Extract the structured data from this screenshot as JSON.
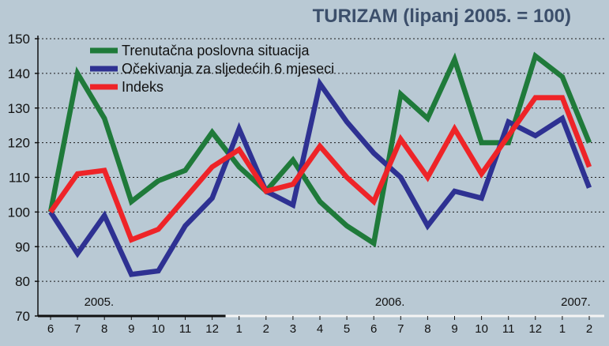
{
  "chart_data": {
    "type": "line",
    "title": "TURIZAM (lipanj 2005. = 100)",
    "xlabel": "",
    "ylabel": "",
    "ylim": [
      70,
      150
    ],
    "yticks": [
      70,
      80,
      90,
      100,
      110,
      120,
      130,
      140,
      150
    ],
    "categories": [
      "6",
      "7",
      "8",
      "9",
      "10",
      "11",
      "12",
      "1",
      "2",
      "3",
      "4",
      "5",
      "6",
      "7",
      "8",
      "9",
      "10",
      "11",
      "12",
      "1",
      "2"
    ],
    "year_labels": [
      {
        "label": "2005.",
        "at_index": 1.8
      },
      {
        "label": "2006.",
        "at_index": 12.6
      },
      {
        "label": "2007.",
        "at_index": 19.5
      }
    ],
    "grid": "horizontal",
    "legend_position": "top-left",
    "series": [
      {
        "name": "Trenutačna poslovna situacija",
        "color": "#1f7a3a",
        "values": [
          100,
          140,
          127,
          103,
          109,
          112,
          123,
          113,
          106,
          115,
          103,
          96,
          91,
          134,
          127,
          144,
          120,
          120,
          145,
          139,
          120
        ]
      },
      {
        "name": "Očekivanja za sljedećih 6 mjeseci",
        "color": "#2e3192",
        "values": [
          100,
          88,
          99,
          82,
          83,
          96,
          104,
          124,
          106,
          102,
          137,
          126,
          117,
          110,
          96,
          106,
          104,
          126,
          122,
          127,
          107
        ]
      },
      {
        "name": "Indeks",
        "color": "#ee2428",
        "values": [
          100,
          111,
          112,
          92,
          95,
          104,
          113,
          118,
          106,
          108,
          119,
          110,
          103,
          121,
          110,
          124,
          111,
          122,
          133,
          133,
          113
        ]
      }
    ]
  }
}
